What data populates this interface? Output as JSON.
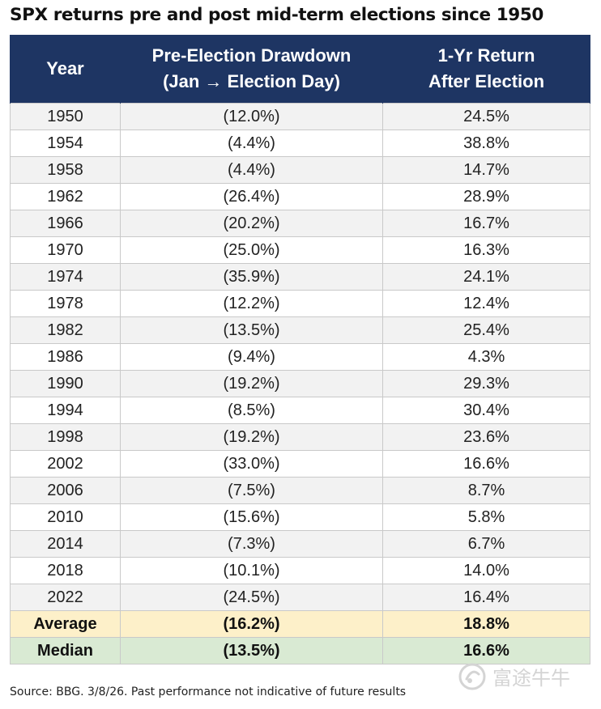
{
  "title": "SPX returns pre and post mid-term elections since 1950",
  "table": {
    "headers": [
      {
        "line1": "Year",
        "line2": ""
      },
      {
        "line1": "Pre-Election Drawdown",
        "line2": "(Jan → Election Day)"
      },
      {
        "line1": "1-Yr Return",
        "line2": "After Election"
      }
    ],
    "rows": [
      {
        "year": "1950",
        "drawdown": "(12.0%)",
        "return": "24.5%"
      },
      {
        "year": "1954",
        "drawdown": "(4.4%)",
        "return": "38.8%"
      },
      {
        "year": "1958",
        "drawdown": "(4.4%)",
        "return": "14.7%"
      },
      {
        "year": "1962",
        "drawdown": "(26.4%)",
        "return": "28.9%"
      },
      {
        "year": "1966",
        "drawdown": "(20.2%)",
        "return": "16.7%"
      },
      {
        "year": "1970",
        "drawdown": "(25.0%)",
        "return": "16.3%"
      },
      {
        "year": "1974",
        "drawdown": "(35.9%)",
        "return": "24.1%"
      },
      {
        "year": "1978",
        "drawdown": "(12.2%)",
        "return": "12.4%"
      },
      {
        "year": "1982",
        "drawdown": "(13.5%)",
        "return": "25.4%"
      },
      {
        "year": "1986",
        "drawdown": "(9.4%)",
        "return": "4.3%"
      },
      {
        "year": "1990",
        "drawdown": "(19.2%)",
        "return": "29.3%"
      },
      {
        "year": "1994",
        "drawdown": "(8.5%)",
        "return": "30.4%"
      },
      {
        "year": "1998",
        "drawdown": "(19.2%)",
        "return": "23.6%"
      },
      {
        "year": "2002",
        "drawdown": "(33.0%)",
        "return": "16.6%"
      },
      {
        "year": "2006",
        "drawdown": "(7.5%)",
        "return": "8.7%"
      },
      {
        "year": "2010",
        "drawdown": "(15.6%)",
        "return": "5.8%"
      },
      {
        "year": "2014",
        "drawdown": "(7.3%)",
        "return": "6.7%"
      },
      {
        "year": "2018",
        "drawdown": "(10.1%)",
        "return": "14.0%"
      },
      {
        "year": "2022",
        "drawdown": "(24.5%)",
        "return": "16.4%"
      }
    ],
    "summary": [
      {
        "label": "Average",
        "drawdown": "(16.2%)",
        "return": "18.8%",
        "color": "#fdf0c9"
      },
      {
        "label": "Median",
        "drawdown": "(13.5%)",
        "return": "16.6%",
        "color": "#d9ead3"
      }
    ]
  },
  "chart_data": {
    "type": "table",
    "title": "SPX returns pre and post mid-term elections since 1950",
    "columns": [
      "Year",
      "Pre-Election Drawdown (Jan → Election Day)",
      "1-Yr Return After Election"
    ],
    "rows": [
      [
        "1950",
        "(12.0%)",
        "24.5%"
      ],
      [
        "1954",
        "(4.4%)",
        "38.8%"
      ],
      [
        "1958",
        "(4.4%)",
        "14.7%"
      ],
      [
        "1962",
        "(26.4%)",
        "28.9%"
      ],
      [
        "1966",
        "(20.2%)",
        "16.7%"
      ],
      [
        "1970",
        "(25.0%)",
        "16.3%"
      ],
      [
        "1974",
        "(35.9%)",
        "24.1%"
      ],
      [
        "1978",
        "(12.2%)",
        "12.4%"
      ],
      [
        "1982",
        "(13.5%)",
        "25.4%"
      ],
      [
        "1986",
        "(9.4%)",
        "4.3%"
      ],
      [
        "1990",
        "(19.2%)",
        "29.3%"
      ],
      [
        "1994",
        "(8.5%)",
        "30.4%"
      ],
      [
        "1998",
        "(19.2%)",
        "23.6%"
      ],
      [
        "2002",
        "(33.0%)",
        "16.6%"
      ],
      [
        "2006",
        "(7.5%)",
        "8.7%"
      ],
      [
        "2010",
        "(15.6%)",
        "5.8%"
      ],
      [
        "2014",
        "(7.3%)",
        "6.7%"
      ],
      [
        "2018",
        "(10.1%)",
        "14.0%"
      ],
      [
        "2022",
        "(24.5%)",
        "16.4%"
      ],
      [
        "Average",
        "(16.2%)",
        "18.8%"
      ],
      [
        "Median",
        "(13.5%)",
        "16.6%"
      ]
    ]
  },
  "colors": {
    "header_bg": "#1e3563",
    "header_text": "#ffffff",
    "row_shade": "#f2f2f2",
    "average_bg": "#fdf0c9",
    "median_bg": "#d9ead3"
  },
  "source": "Source: BBG. 3/8/26. Past performance not indicative of future results",
  "watermark": {
    "icon": "futu-logo-icon",
    "text": "富途牛牛"
  }
}
